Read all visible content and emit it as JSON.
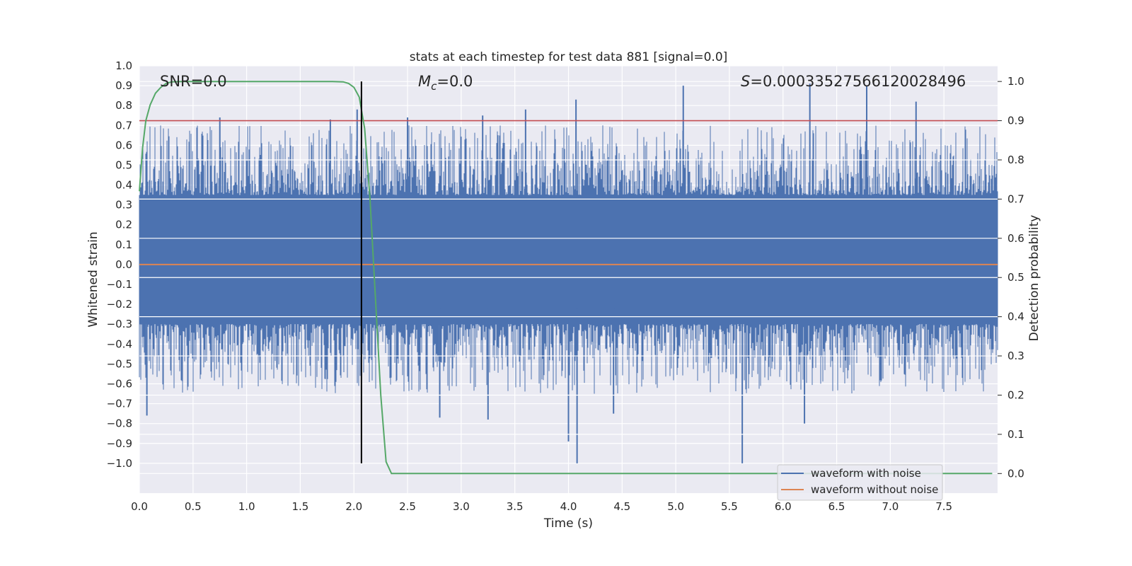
{
  "colors": {
    "background": "#eaeaf2",
    "grid": "#ffffff",
    "noise": "#4c72b0",
    "template": "#dd8452",
    "probability": "#55a868",
    "threshold": "#c44e52",
    "marker": "#000000"
  },
  "chart_data": {
    "type": "line",
    "title": "stats at each timestep for test data 881 [signal=0.0]",
    "xlabel": "Time (s)",
    "ylabel": "Whitened strain",
    "y2label": "Detection probability",
    "xlim": [
      0.0,
      8.0
    ],
    "ylim": [
      -1.15,
      1.0
    ],
    "y2lim": [
      -0.05,
      1.04
    ],
    "xticks": [
      "0.0",
      "0.5",
      "1.0",
      "1.5",
      "2.0",
      "2.5",
      "3.0",
      "3.5",
      "4.0",
      "4.5",
      "5.0",
      "5.5",
      "6.0",
      "6.5",
      "7.0",
      "7.5"
    ],
    "yticks": [
      "1.0",
      "0.9",
      "0.8",
      "0.7",
      "0.6",
      "0.5",
      "0.4",
      "0.3",
      "0.2",
      "0.1",
      "0.0",
      "−0.1",
      "−0.2",
      "−0.3",
      "−0.4",
      "−0.5",
      "−0.6",
      "−0.7",
      "−0.8",
      "−0.9",
      "−1.0"
    ],
    "y2ticks": [
      "1.0",
      "0.9",
      "0.8",
      "0.7",
      "0.6",
      "0.5",
      "0.4",
      "0.3",
      "0.2",
      "0.1",
      "0.0"
    ],
    "annotations": {
      "snr": "SNR=0.0",
      "mc_symbol": "M",
      "mc_sub": "c",
      "mc_value": "=0.0",
      "s_symbol": "S",
      "s_value": "=0.00033527566120028496"
    },
    "legend": {
      "position": "lower-right",
      "entries": [
        "waveform with noise",
        "waveform without noise"
      ]
    },
    "series": [
      {
        "name": "waveform with noise",
        "axis": "left",
        "noise_band": {
          "typical_upper": 0.35,
          "typical_lower": -0.3
        },
        "peaks": [
          {
            "x": 0.75,
            "y": 0.74
          },
          {
            "x": 1.78,
            "y": 0.73
          },
          {
            "x": 2.03,
            "y": 0.78
          },
          {
            "x": 2.5,
            "y": 0.74
          },
          {
            "x": 3.2,
            "y": 0.75
          },
          {
            "x": 3.6,
            "y": 0.78
          },
          {
            "x": 4.07,
            "y": 0.83
          },
          {
            "x": 5.07,
            "y": 0.9
          },
          {
            "x": 6.25,
            "y": 0.91
          },
          {
            "x": 6.78,
            "y": 0.9
          },
          {
            "x": 7.24,
            "y": 0.82
          }
        ],
        "troughs": [
          {
            "x": 0.07,
            "y": -0.76
          },
          {
            "x": 2.8,
            "y": -0.77
          },
          {
            "x": 3.25,
            "y": -0.78
          },
          {
            "x": 4.0,
            "y": -0.89
          },
          {
            "x": 4.08,
            "y": -1.0
          },
          {
            "x": 4.42,
            "y": -0.75
          },
          {
            "x": 5.62,
            "y": -1.0
          },
          {
            "x": 6.2,
            "y": -0.8
          }
        ]
      },
      {
        "name": "waveform without noise",
        "axis": "left",
        "x": [
          0.0,
          8.0
        ],
        "values": [
          0.0,
          0.0
        ]
      },
      {
        "name": "detection probability",
        "axis": "right",
        "x": [
          0.0,
          0.03,
          0.06,
          0.1,
          0.15,
          0.2,
          0.25,
          0.3,
          0.4,
          0.6,
          1.0,
          1.5,
          1.8,
          1.9,
          1.95,
          2.0,
          2.05,
          2.1,
          2.15,
          2.2,
          2.25,
          2.3,
          2.35,
          2.45,
          2.6,
          3.0,
          5.0,
          7.5,
          7.95
        ],
        "values": [
          0.72,
          0.83,
          0.9,
          0.94,
          0.97,
          0.985,
          0.995,
          0.999,
          1.0,
          1.0,
          1.0,
          1.0,
          1.0,
          0.999,
          0.995,
          0.985,
          0.96,
          0.88,
          0.7,
          0.45,
          0.2,
          0.03,
          0.0,
          0.0,
          0.0,
          0.0,
          0.0,
          0.0,
          0.0
        ]
      },
      {
        "name": "threshold",
        "axis": "right",
        "x": [
          0.0,
          8.0
        ],
        "values": [
          0.9,
          0.9
        ]
      }
    ],
    "marker_x": 2.07
  }
}
